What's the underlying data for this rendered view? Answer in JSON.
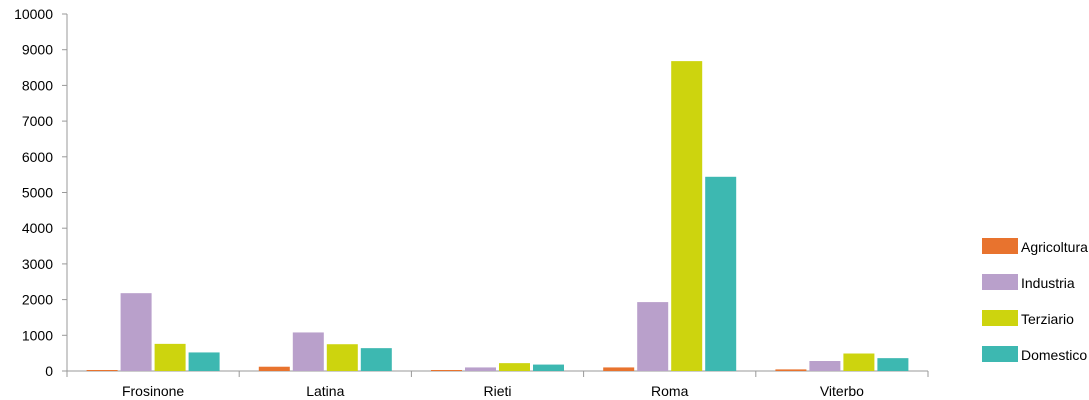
{
  "chart_data": {
    "type": "bar",
    "categories": [
      "Frosinone",
      "Latina",
      "Rieti",
      "Roma",
      "Viterbo"
    ],
    "series": [
      {
        "name": "Agricoltura",
        "color": "#E8732E",
        "values": [
          20,
          120,
          15,
          100,
          45
        ]
      },
      {
        "name": "Industria",
        "color": "#B9A0CB",
        "values": [
          2180,
          1080,
          100,
          1930,
          280
        ]
      },
      {
        "name": "Terziario",
        "color": "#CDD40E",
        "values": [
          760,
          750,
          220,
          8680,
          490
        ]
      },
      {
        "name": "Domestico",
        "color": "#3DB8B1",
        "values": [
          520,
          640,
          180,
          5440,
          360
        ]
      }
    ],
    "y_ticks": [
      "0",
      "1000",
      "2000",
      "3000",
      "4000",
      "5000",
      "6000",
      "7000",
      "8000",
      "9000",
      "10000"
    ],
    "ylim": [
      0,
      10000
    ],
    "grid": false,
    "legend_position": "right"
  }
}
